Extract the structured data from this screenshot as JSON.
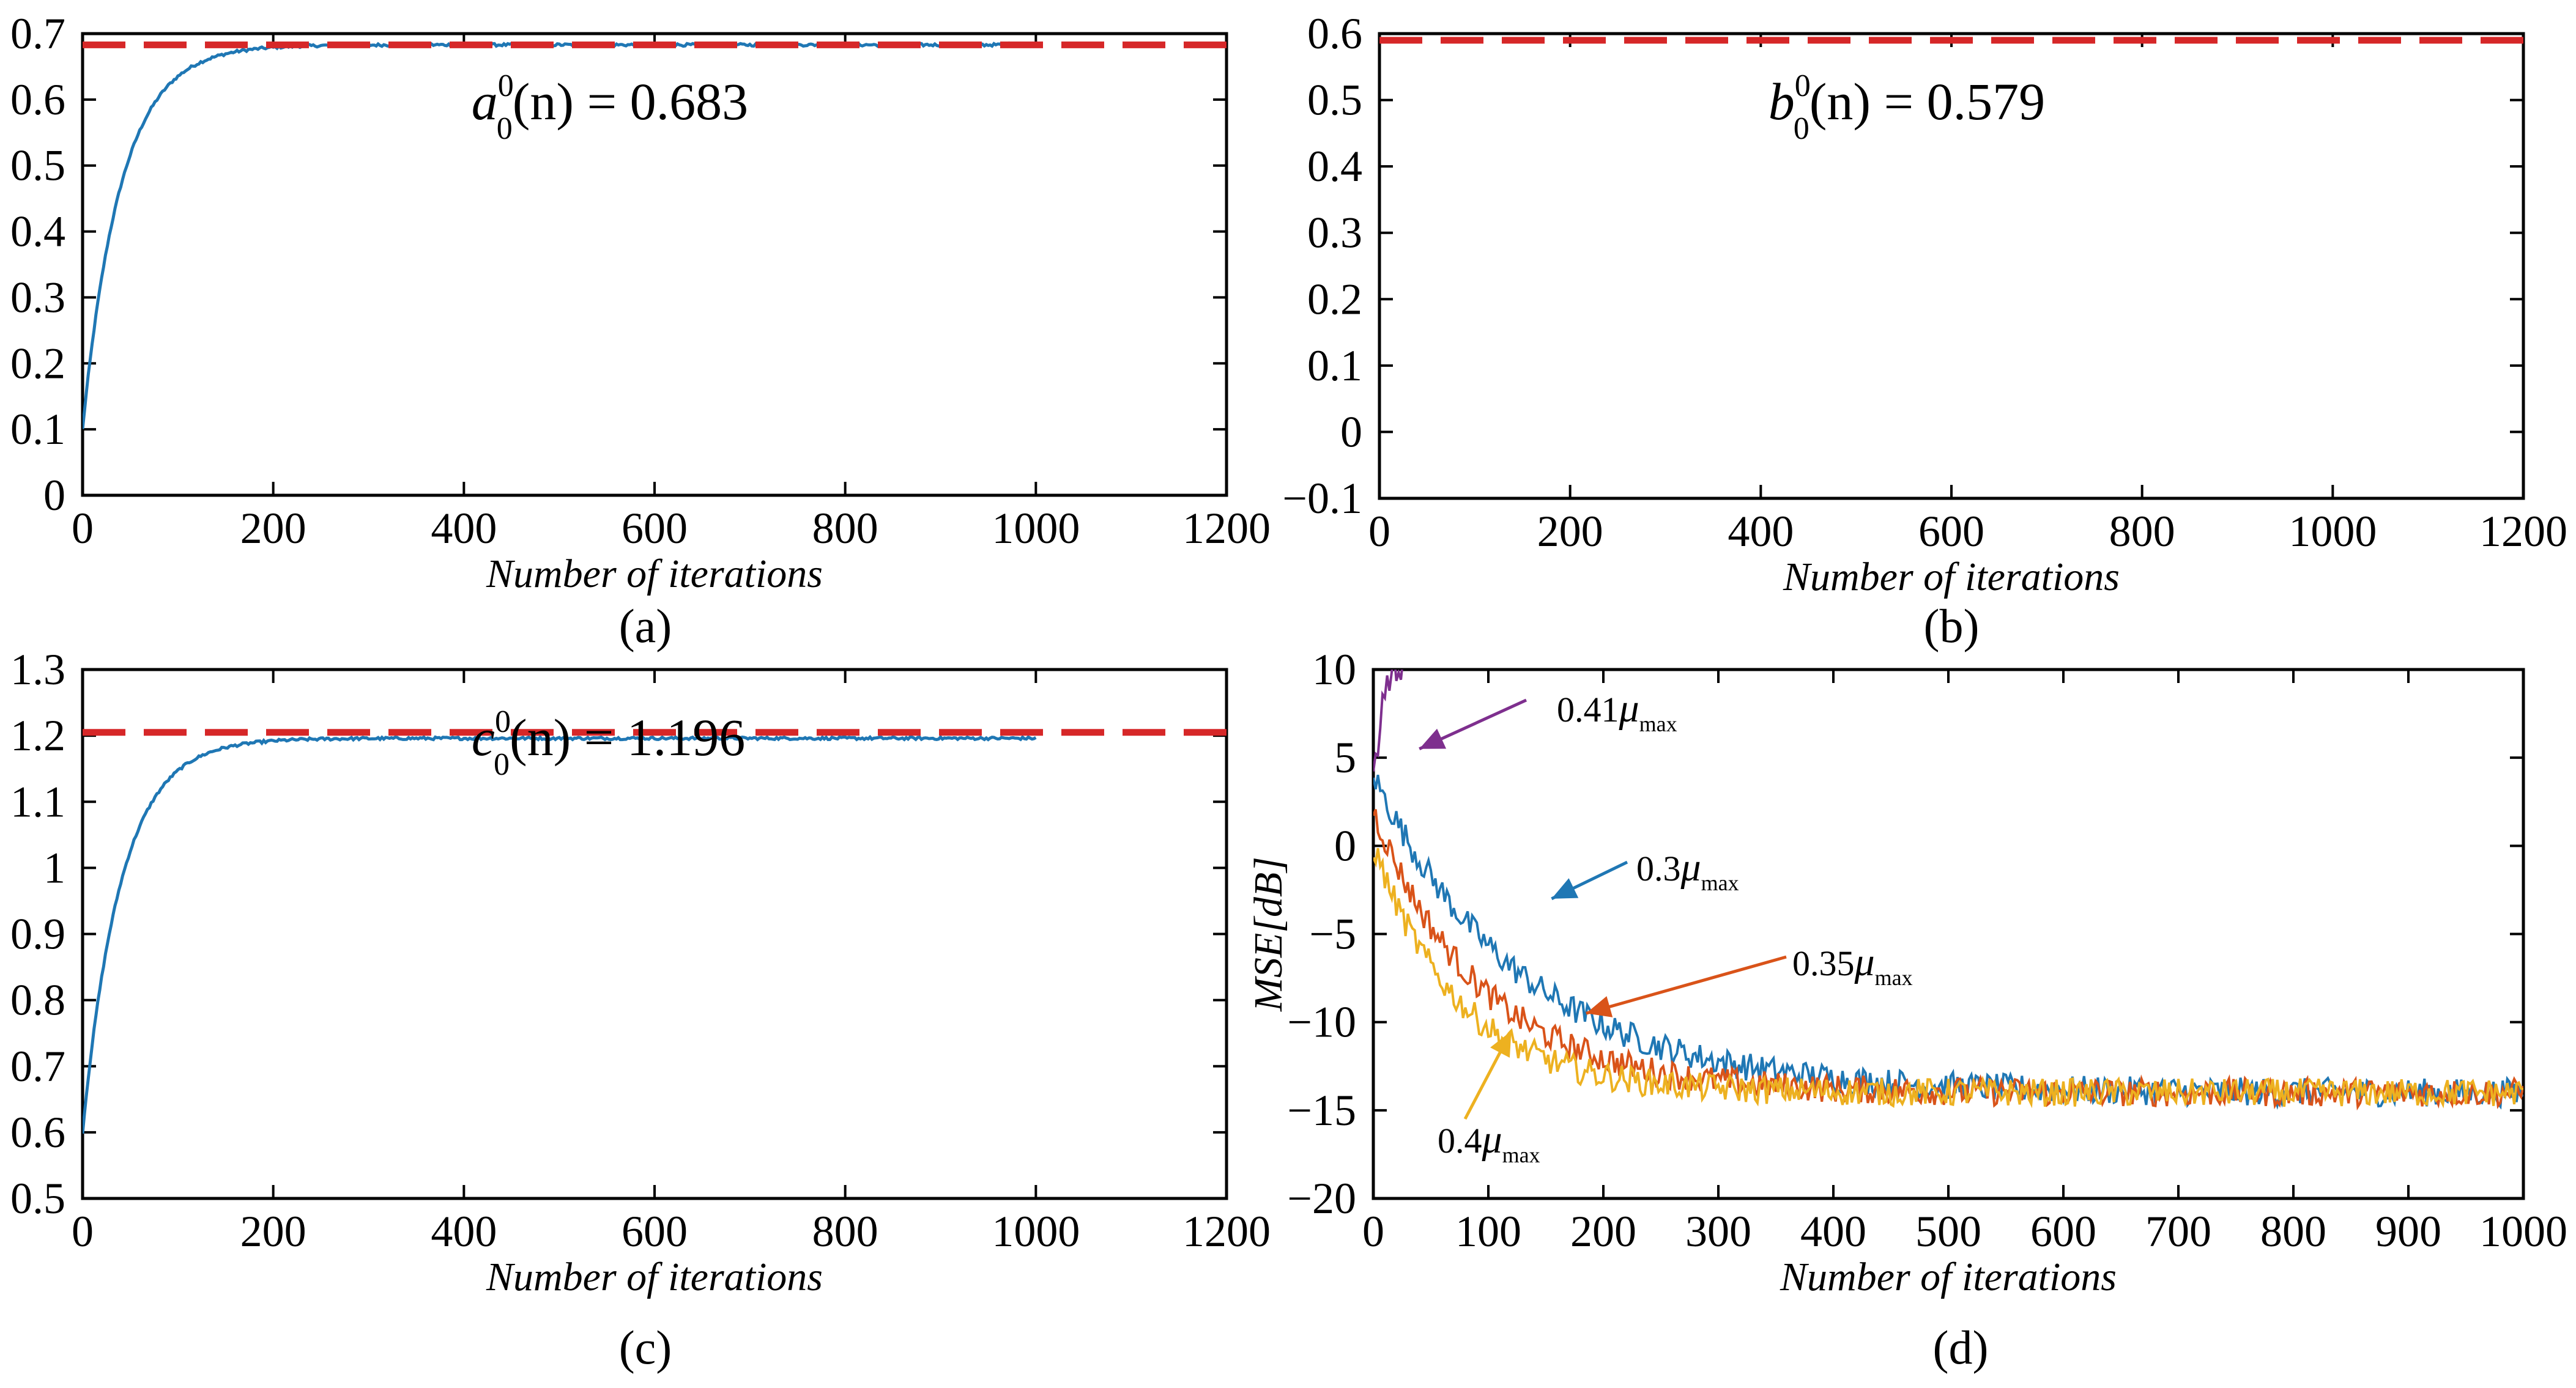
{
  "chart_data": [
    {
      "panel": "(a)",
      "type": "line",
      "xlabel": "Number of iterations",
      "ylabel": "",
      "xlim": [
        0,
        1200
      ],
      "ylim": [
        0,
        0.7
      ],
      "xticks": [
        0,
        200,
        400,
        600,
        800,
        1000,
        1200
      ],
      "yticks": [
        0,
        0.1,
        0.2,
        0.3,
        0.4,
        0.5,
        0.6,
        0.7
      ],
      "series": [
        {
          "color": "#1f77b4",
          "style": "solid",
          "x_range": [
            0,
            1000
          ],
          "start": 0.1,
          "final": 0.683,
          "tau": 40
        },
        {
          "color": "#d62728",
          "style": "dashed",
          "x_range": [
            0,
            1200
          ],
          "value": 0.683
        }
      ],
      "annotation": {
        "base": "a",
        "sup": "0",
        "sub": "0",
        "arg": "(n)",
        "eq": " = 0.683"
      },
      "grid": false
    },
    {
      "panel": "(b)",
      "type": "line",
      "xlabel": "Number of iterations",
      "ylabel": "",
      "xlim": [
        0,
        1200
      ],
      "ylim": [
        -0.1,
        0.6
      ],
      "xticks": [
        0,
        200,
        400,
        600,
        800,
        1000,
        1200
      ],
      "yticks": [
        -0.1,
        0,
        0.1,
        0.2,
        0.3,
        0.4,
        0.5,
        0.6
      ],
      "series": [
        {
          "color": "#d62728",
          "style": "dashed",
          "x_range": [
            0,
            1200
          ],
          "value": 0.59
        }
      ],
      "annotation": {
        "base": "b",
        "sup": "0",
        "sub": "0",
        "arg": "(n)",
        "eq": " = 0.579"
      },
      "grid": false
    },
    {
      "panel": "(c)",
      "type": "line",
      "xlabel": "Number of iterations",
      "ylabel": "",
      "xlim": [
        0,
        1200
      ],
      "ylim": [
        0.5,
        1.3
      ],
      "xticks": [
        0,
        200,
        400,
        600,
        800,
        1000,
        1200
      ],
      "yticks": [
        0.5,
        0.6,
        0.7,
        0.8,
        0.9,
        1.0,
        1.1,
        1.2,
        1.3
      ],
      "series": [
        {
          "color": "#1f77b4",
          "style": "solid",
          "x_range": [
            0,
            1000
          ],
          "start": 0.6,
          "final": 1.196,
          "tau": 40
        },
        {
          "color": "#d62728",
          "style": "dashed",
          "x_range": [
            0,
            1200
          ],
          "value": 1.205
        }
      ],
      "annotation": {
        "base": "c",
        "sup": "0",
        "sub": "0",
        "arg": "(n)",
        "eq": " = 1.196"
      },
      "grid": false
    },
    {
      "panel": "(d)",
      "type": "line",
      "xlabel": "Number of iterations",
      "ylabel": "MSE[dB]",
      "xlim": [
        0,
        1000
      ],
      "ylim": [
        -20,
        10
      ],
      "xticks": [
        0,
        100,
        200,
        300,
        400,
        500,
        600,
        700,
        800,
        900,
        1000
      ],
      "yticks": [
        -20,
        -15,
        -10,
        -5,
        0,
        5,
        10
      ],
      "series": [
        {
          "label": "0.41",
          "sub": "max",
          "color": "#7e2f8e",
          "x_range": [
            0,
            60
          ],
          "start": 4,
          "final": 14,
          "tau": 20,
          "noise": 2.0
        },
        {
          "label": "0.3",
          "sub": "max",
          "color": "#1f77b4",
          "x_range": [
            0,
            1000
          ],
          "start": 4,
          "final": -14,
          "tau": 130,
          "noise": 0.8
        },
        {
          "label": "0.35",
          "sub": "max",
          "color": "#d95319",
          "x_range": [
            0,
            1000
          ],
          "start": 2,
          "final": -14,
          "tau": 95,
          "noise": 0.8
        },
        {
          "label": "0.4",
          "sub": "max",
          "color": "#edb120",
          "x_range": [
            0,
            1000
          ],
          "start": 0,
          "final": -14,
          "tau": 75,
          "noise": 0.8
        }
      ],
      "grid": false
    }
  ],
  "mu_symbol": "μ"
}
